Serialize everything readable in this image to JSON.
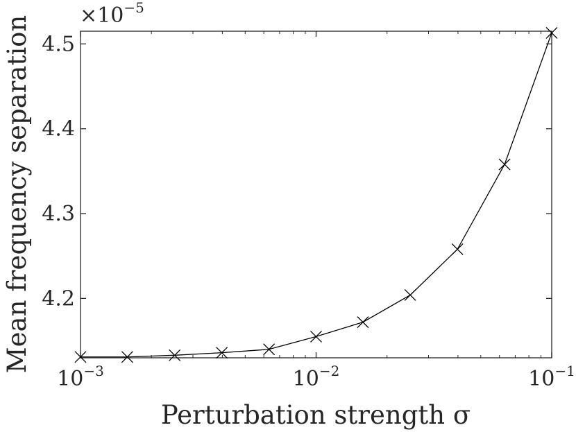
{
  "chart_data": {
    "type": "line",
    "xlabel": "Perturbation strength σ",
    "ylabel": "Mean frequency separation",
    "xscale": "log",
    "xlim": [
      0.001,
      0.1
    ],
    "ylim": [
      4.13,
      4.515
    ],
    "y_multiplier": "×10−5",
    "grid": false,
    "marker": "x",
    "series": [
      {
        "x": [
          0.001,
          0.00158,
          0.00251,
          0.00398,
          0.00631,
          0.01,
          0.0158,
          0.0251,
          0.0398,
          0.0631,
          0.1
        ],
        "values": [
          4.131,
          4.131,
          4.133,
          4.136,
          4.14,
          4.155,
          4.172,
          4.204,
          4.258,
          4.358,
          4.513
        ]
      }
    ],
    "x_ticks": [
      {
        "value": 0.001,
        "base": "10",
        "exp": "−3"
      },
      {
        "value": 0.01,
        "base": "10",
        "exp": "−2"
      },
      {
        "value": 0.1,
        "base": "10",
        "exp": "−1"
      }
    ],
    "y_ticks": [
      {
        "value": 4.2,
        "label": "4.2"
      },
      {
        "value": 4.3,
        "label": "4.3"
      },
      {
        "value": 4.4,
        "label": "4.4"
      },
      {
        "value": 4.5,
        "label": "4.5"
      }
    ]
  },
  "colors": {
    "axis": "#262626",
    "line": "#000000",
    "background": "#ffffff"
  }
}
